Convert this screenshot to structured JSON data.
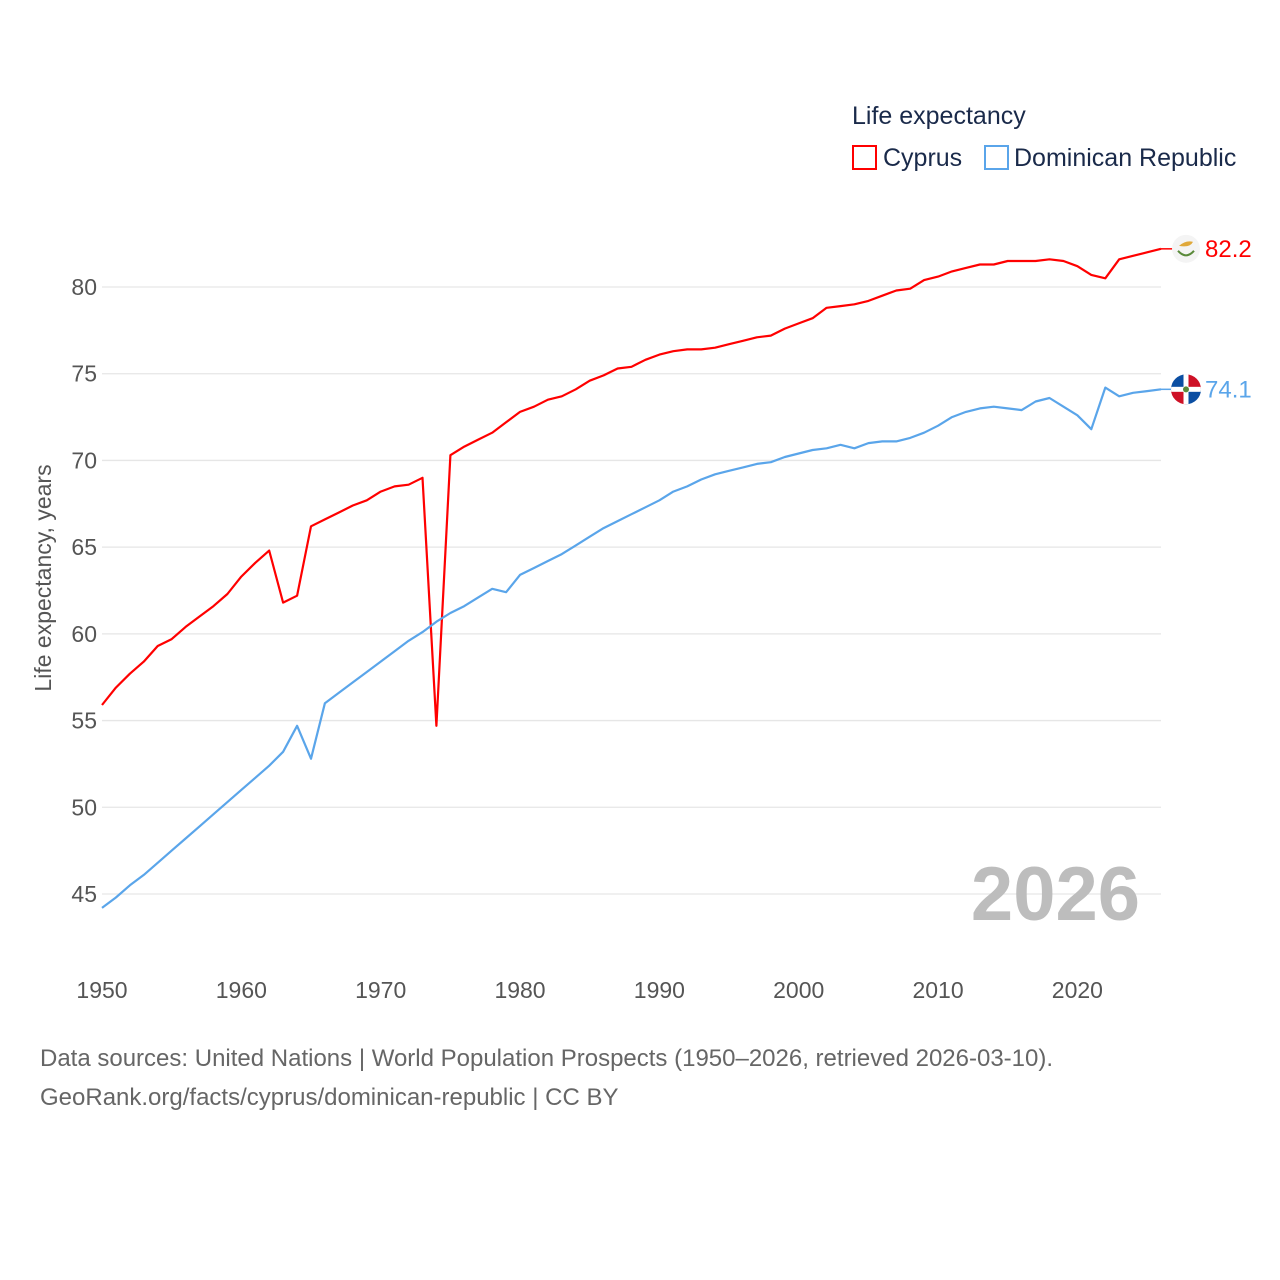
{
  "chart_data": {
    "type": "line",
    "legend_title": "Life expectancy",
    "legend_position": "top-right",
    "ylabel": "Life expectancy, years",
    "xlabel": "",
    "ylim": [
      42.5,
      84
    ],
    "xlim": [
      1950,
      2026
    ],
    "yticks": [
      45,
      50,
      55,
      60,
      65,
      70,
      75,
      80
    ],
    "xticks": [
      1950,
      1960,
      1970,
      1980,
      1990,
      2000,
      2010,
      2020
    ],
    "grid": true,
    "year_watermark": "2026",
    "x": [
      1950,
      1951,
      1952,
      1953,
      1954,
      1955,
      1956,
      1957,
      1958,
      1959,
      1960,
      1961,
      1962,
      1963,
      1964,
      1965,
      1966,
      1967,
      1968,
      1969,
      1970,
      1971,
      1972,
      1973,
      1974,
      1975,
      1976,
      1977,
      1978,
      1979,
      1980,
      1981,
      1982,
      1983,
      1984,
      1985,
      1986,
      1987,
      1988,
      1989,
      1990,
      1991,
      1992,
      1993,
      1994,
      1995,
      1996,
      1997,
      1998,
      1999,
      2000,
      2001,
      2002,
      2003,
      2004,
      2005,
      2006,
      2007,
      2008,
      2009,
      2010,
      2011,
      2012,
      2013,
      2014,
      2015,
      2016,
      2017,
      2018,
      2019,
      2020,
      2021,
      2022,
      2023,
      2024,
      2025,
      2026
    ],
    "series": [
      {
        "name": "Cyprus",
        "color": "#ff0000",
        "end_label": "82.2",
        "flag": "cyprus-flag",
        "values": [
          55.9,
          56.9,
          57.7,
          58.4,
          59.3,
          59.7,
          60.4,
          61.0,
          61.6,
          62.3,
          63.3,
          64.1,
          64.8,
          61.8,
          62.2,
          66.2,
          66.6,
          67.0,
          67.4,
          67.7,
          68.2,
          68.5,
          68.6,
          69.0,
          54.7,
          70.3,
          70.8,
          71.2,
          71.6,
          72.2,
          72.8,
          73.1,
          73.5,
          73.7,
          74.1,
          74.6,
          74.9,
          75.3,
          75.4,
          75.8,
          76.1,
          76.3,
          76.4,
          76.4,
          76.5,
          76.7,
          76.9,
          77.1,
          77.2,
          77.6,
          77.9,
          78.2,
          78.8,
          78.9,
          79.0,
          79.2,
          79.5,
          79.8,
          79.9,
          80.4,
          80.6,
          80.9,
          81.1,
          81.3,
          81.3,
          81.5,
          81.5,
          81.5,
          81.6,
          81.5,
          81.2,
          80.7,
          80.5,
          81.6,
          81.8,
          82.0,
          82.2
        ]
      },
      {
        "name": "Dominican Republic",
        "color": "#5aa5ea",
        "end_label": "74.1",
        "flag": "dominican-republic-flag",
        "values": [
          44.2,
          44.8,
          45.5,
          46.1,
          46.8,
          47.5,
          48.2,
          48.9,
          49.6,
          50.3,
          51.0,
          51.7,
          52.4,
          53.2,
          54.7,
          52.8,
          56.0,
          56.6,
          57.2,
          57.8,
          58.4,
          59.0,
          59.6,
          60.1,
          60.7,
          61.2,
          61.6,
          62.1,
          62.6,
          62.4,
          63.4,
          63.8,
          64.2,
          64.6,
          65.1,
          65.6,
          66.1,
          66.5,
          66.9,
          67.3,
          67.7,
          68.2,
          68.5,
          68.9,
          69.2,
          69.4,
          69.6,
          69.8,
          69.9,
          70.2,
          70.4,
          70.6,
          70.7,
          70.9,
          70.7,
          71.0,
          71.1,
          71.1,
          71.3,
          71.6,
          72.0,
          72.5,
          72.8,
          73.0,
          73.1,
          73.0,
          72.9,
          73.4,
          73.6,
          73.1,
          72.6,
          71.8,
          74.2,
          73.7,
          73.9,
          74.0,
          74.1
        ]
      }
    ]
  },
  "footer": {
    "line1": "Data sources: United Nations | World Population Prospects (1950–2026, retrieved 2026-03-10).",
    "line2": "GeoRank.org/facts/cyprus/dominican-republic | CC BY"
  }
}
